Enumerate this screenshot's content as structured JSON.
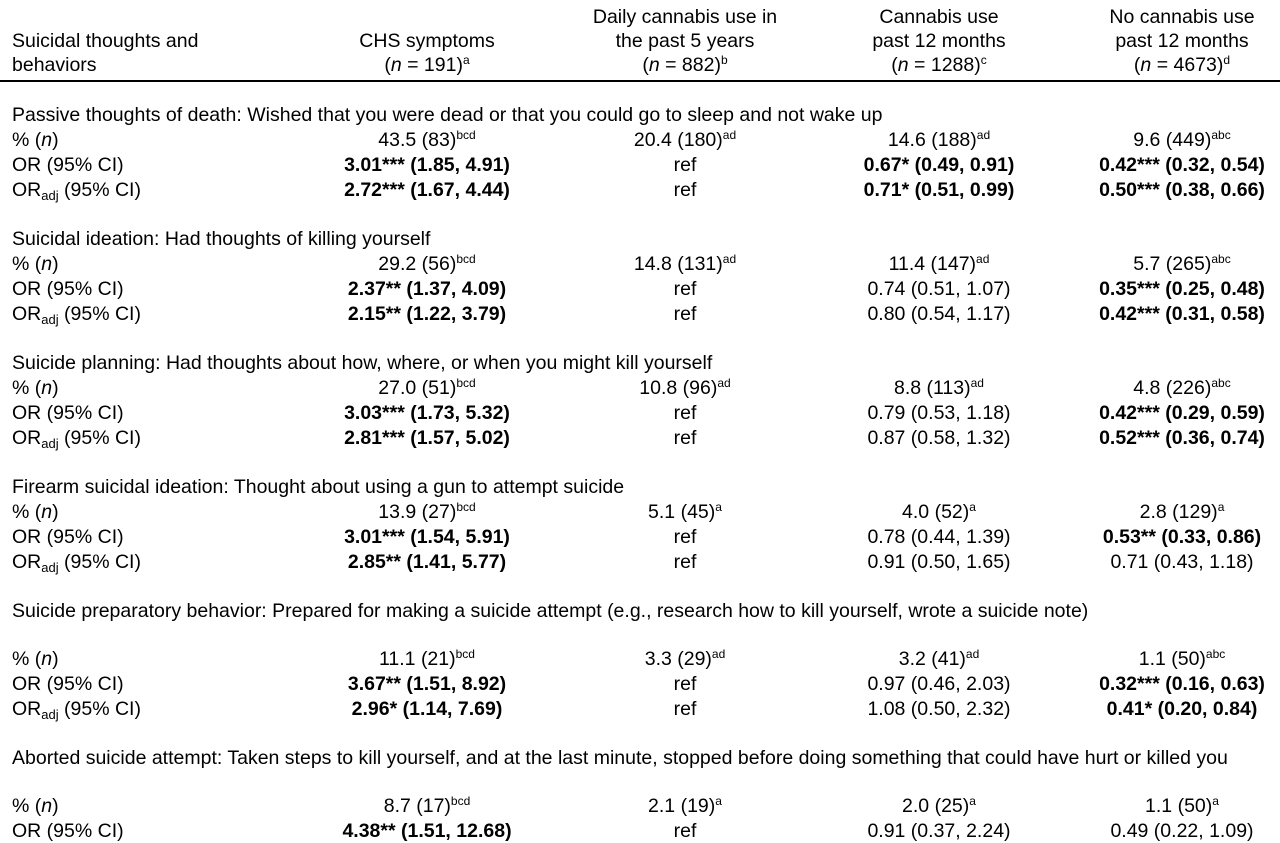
{
  "header": {
    "col0": [
      "Suicidal thoughts and",
      "behaviors"
    ],
    "columns": [
      {
        "lines": [
          "CHS symptoms"
        ],
        "n": "191",
        "sup": "a"
      },
      {
        "lines": [
          "Daily cannabis use in",
          "the past 5 years"
        ],
        "n": "882",
        "sup": "b"
      },
      {
        "lines": [
          "Cannabis use",
          "past 12 months"
        ],
        "n": "1288",
        "sup": "c"
      },
      {
        "lines": [
          "No cannabis use",
          "past 12 months"
        ],
        "n": "4673",
        "sup": "d"
      }
    ]
  },
  "sections": [
    {
      "title": "Passive thoughts of death: Wished that you were dead or that you could go to sleep and not wake up",
      "rows": [
        {
          "label": "pct",
          "cells": [
            {
              "t": "43.5 (83)",
              "s": "bcd"
            },
            {
              "t": "20.4 (180)",
              "s": "ad"
            },
            {
              "t": "14.6 (188)",
              "s": "ad"
            },
            {
              "t": "9.6 (449)",
              "s": "abc"
            }
          ]
        },
        {
          "label": "or",
          "cells": [
            {
              "t": "3.01*** (1.85, 4.91)",
              "b": true
            },
            {
              "t": "ref"
            },
            {
              "t": "0.67* (0.49, 0.91)",
              "b": true
            },
            {
              "t": "0.42*** (0.32, 0.54)",
              "b": true
            }
          ]
        },
        {
          "label": "oradj",
          "cells": [
            {
              "t": "2.72*** (1.67, 4.44)",
              "b": true
            },
            {
              "t": "ref"
            },
            {
              "t": "0.71* (0.51, 0.99)",
              "b": true
            },
            {
              "t": "0.50*** (0.38, 0.66)",
              "b": true
            }
          ]
        }
      ]
    },
    {
      "title": "Suicidal ideation: Had thoughts of killing yourself",
      "rows": [
        {
          "label": "pct",
          "cells": [
            {
              "t": "29.2 (56)",
              "s": "bcd"
            },
            {
              "t": "14.8 (131)",
              "s": "ad"
            },
            {
              "t": "11.4 (147)",
              "s": "ad"
            },
            {
              "t": "5.7 (265)",
              "s": "abc"
            }
          ]
        },
        {
          "label": "or",
          "cells": [
            {
              "t": "2.37** (1.37, 4.09)",
              "b": true
            },
            {
              "t": "ref"
            },
            {
              "t": "0.74 (0.51, 1.07)"
            },
            {
              "t": "0.35*** (0.25, 0.48)",
              "b": true
            }
          ]
        },
        {
          "label": "oradj",
          "cells": [
            {
              "t": "2.15** (1.22, 3.79)",
              "b": true
            },
            {
              "t": "ref"
            },
            {
              "t": "0.80 (0.54, 1.17)"
            },
            {
              "t": "0.42*** (0.31, 0.58)",
              "b": true
            }
          ]
        }
      ]
    },
    {
      "title": "Suicide planning: Had thoughts about how, where, or when you might kill yourself",
      "rows": [
        {
          "label": "pct",
          "cells": [
            {
              "t": "27.0 (51)",
              "s": "bcd"
            },
            {
              "t": "10.8 (96)",
              "s": "ad"
            },
            {
              "t": "8.8 (113)",
              "s": "ad"
            },
            {
              "t": "4.8 (226)",
              "s": "abc"
            }
          ]
        },
        {
          "label": "or",
          "cells": [
            {
              "t": "3.03*** (1.73, 5.32)",
              "b": true
            },
            {
              "t": "ref"
            },
            {
              "t": "0.79 (0.53, 1.18)"
            },
            {
              "t": "0.42*** (0.29, 0.59)",
              "b": true
            }
          ]
        },
        {
          "label": "oradj",
          "cells": [
            {
              "t": "2.81*** (1.57, 5.02)",
              "b": true
            },
            {
              "t": "ref"
            },
            {
              "t": "0.87 (0.58, 1.32)"
            },
            {
              "t": "0.52*** (0.36, 0.74)",
              "b": true
            }
          ]
        }
      ]
    },
    {
      "title": "Firearm suicidal ideation: Thought about using a gun to attempt suicide",
      "rows": [
        {
          "label": "pct",
          "cells": [
            {
              "t": "13.9 (27)",
              "s": "bcd"
            },
            {
              "t": "5.1 (45)",
              "s": "a"
            },
            {
              "t": "4.0 (52)",
              "s": "a"
            },
            {
              "t": "2.8 (129)",
              "s": "a"
            }
          ]
        },
        {
          "label": "or",
          "cells": [
            {
              "t": "3.01*** (1.54, 5.91)",
              "b": true
            },
            {
              "t": "ref"
            },
            {
              "t": "0.78 (0.44, 1.39)"
            },
            {
              "t": "0.53** (0.33, 0.86)",
              "b": true
            }
          ]
        },
        {
          "label": "oradj",
          "cells": [
            {
              "t": "2.85** (1.41, 5.77)",
              "b": true
            },
            {
              "t": "ref"
            },
            {
              "t": "0.91 (0.50, 1.65)"
            },
            {
              "t": "0.71 (0.43, 1.18)"
            }
          ]
        }
      ]
    },
    {
      "title": "Suicide preparatory behavior: Prepared for making a suicide attempt (e.g., research how to kill yourself, wrote a suicide note)",
      "rows": [
        {
          "label": "pct",
          "cells": [
            {
              "t": "11.1 (21)",
              "s": "bcd"
            },
            {
              "t": "3.3 (29)",
              "s": "ad"
            },
            {
              "t": "3.2 (41)",
              "s": "ad"
            },
            {
              "t": "1.1 (50)",
              "s": "abc"
            }
          ]
        },
        {
          "label": "or",
          "cells": [
            {
              "t": "3.67** (1.51, 8.92)",
              "b": true
            },
            {
              "t": "ref"
            },
            {
              "t": "0.97 (0.46, 2.03)"
            },
            {
              "t": "0.32*** (0.16, 0.63)",
              "b": true
            }
          ]
        },
        {
          "label": "oradj",
          "cells": [
            {
              "t": "2.96* (1.14, 7.69)",
              "b": true
            },
            {
              "t": "ref"
            },
            {
              "t": "1.08 (0.50, 2.32)"
            },
            {
              "t": "0.41* (0.20, 0.84)",
              "b": true
            }
          ]
        }
      ]
    },
    {
      "title": "Aborted suicide attempt: Taken steps to kill yourself, and at the last minute, stopped before doing something that could have hurt or killed you",
      "rows": [
        {
          "label": "pct",
          "cells": [
            {
              "t": "8.7 (17)",
              "s": "bcd"
            },
            {
              "t": "2.1 (19)",
              "s": "a"
            },
            {
              "t": "2.0 (25)",
              "s": "a"
            },
            {
              "t": "1.1 (50)",
              "s": "a"
            }
          ]
        },
        {
          "label": "or",
          "cells": [
            {
              "t": "4.38** (1.51, 12.68)",
              "b": true
            },
            {
              "t": "ref"
            },
            {
              "t": "0.91 (0.37, 2.24)"
            },
            {
              "t": "0.49 (0.22, 1.09)"
            }
          ]
        }
      ]
    }
  ],
  "row_labels": {
    "pct_symbol": "%",
    "pct_n": "n",
    "or": "OR (95% CI)",
    "oradj_main": "OR",
    "oradj_sub": "adj",
    "oradj_rest": " (95% CI)"
  },
  "n_prefix": "n",
  "n_eq": " = "
}
